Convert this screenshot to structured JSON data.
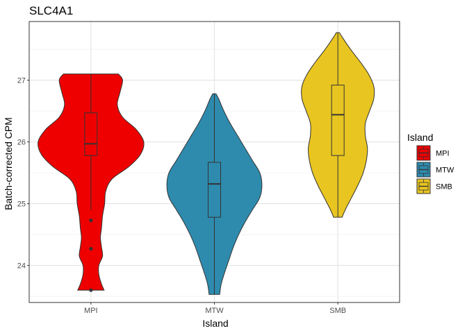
{
  "chart_data": {
    "type": "violin",
    "title": "SLC4A1",
    "xlabel": "Island",
    "ylabel": "Batch-corrected CPM",
    "categories": [
      "MPI",
      "MTW",
      "SMB"
    ],
    "ylim": [
      23.4,
      27.95
    ],
    "yticks": [
      24,
      25,
      26,
      27
    ],
    "grid": true,
    "legend": {
      "title": "Island",
      "position": "right",
      "entries": [
        "MPI",
        "MTW",
        "SMB"
      ]
    },
    "series": [
      {
        "name": "MPI",
        "color": "#EE0000",
        "range": [
          23.6,
          27.1
        ],
        "box": {
          "lower": 25.78,
          "median": 25.97,
          "upper": 26.47,
          "whisker_low": 24.9,
          "whisker_high": 27.1
        },
        "outliers": [
          24.73,
          24.27,
          23.6
        ],
        "density": [
          [
            23.6,
            0.25
          ],
          [
            23.7,
            0.2
          ],
          [
            23.85,
            0.15
          ],
          [
            24.0,
            0.15
          ],
          [
            24.15,
            0.22
          ],
          [
            24.3,
            0.2
          ],
          [
            24.45,
            0.18
          ],
          [
            24.6,
            0.2
          ],
          [
            24.8,
            0.22
          ],
          [
            25.0,
            0.26
          ],
          [
            25.2,
            0.28
          ],
          [
            25.4,
            0.4
          ],
          [
            25.6,
            0.72
          ],
          [
            25.8,
            0.94
          ],
          [
            26.0,
            1.0
          ],
          [
            26.2,
            0.86
          ],
          [
            26.4,
            0.6
          ],
          [
            26.6,
            0.5
          ],
          [
            26.8,
            0.55
          ],
          [
            27.0,
            0.6
          ],
          [
            27.1,
            0.52
          ]
        ]
      },
      {
        "name": "MTW",
        "color": "#2E8BAE",
        "range": [
          23.53,
          26.78
        ],
        "box": {
          "lower": 24.78,
          "median": 25.32,
          "upper": 25.67,
          "whisker_low": 23.53,
          "whisker_high": 26.78
        },
        "outliers": [],
        "density": [
          [
            23.53,
            0.1
          ],
          [
            23.7,
            0.13
          ],
          [
            23.9,
            0.2
          ],
          [
            24.1,
            0.28
          ],
          [
            24.3,
            0.36
          ],
          [
            24.5,
            0.46
          ],
          [
            24.7,
            0.58
          ],
          [
            24.9,
            0.72
          ],
          [
            25.1,
            0.86
          ],
          [
            25.3,
            0.9
          ],
          [
            25.5,
            0.86
          ],
          [
            25.7,
            0.72
          ],
          [
            25.9,
            0.58
          ],
          [
            26.1,
            0.44
          ],
          [
            26.3,
            0.3
          ],
          [
            26.5,
            0.18
          ],
          [
            26.7,
            0.08
          ],
          [
            26.78,
            0.03
          ]
        ]
      },
      {
        "name": "SMB",
        "color": "#E8C520",
        "range": [
          24.78,
          27.77
        ],
        "box": {
          "lower": 25.78,
          "median": 26.44,
          "upper": 26.92,
          "whisker_low": 24.78,
          "whisker_high": 27.77
        },
        "outliers": [],
        "density": [
          [
            24.78,
            0.08
          ],
          [
            24.9,
            0.14
          ],
          [
            25.1,
            0.26
          ],
          [
            25.3,
            0.38
          ],
          [
            25.5,
            0.48
          ],
          [
            25.7,
            0.54
          ],
          [
            25.9,
            0.56
          ],
          [
            26.1,
            0.52
          ],
          [
            26.3,
            0.52
          ],
          [
            26.5,
            0.6
          ],
          [
            26.7,
            0.68
          ],
          [
            26.9,
            0.68
          ],
          [
            27.1,
            0.58
          ],
          [
            27.3,
            0.42
          ],
          [
            27.5,
            0.24
          ],
          [
            27.7,
            0.08
          ],
          [
            27.77,
            0.03
          ]
        ]
      }
    ]
  }
}
